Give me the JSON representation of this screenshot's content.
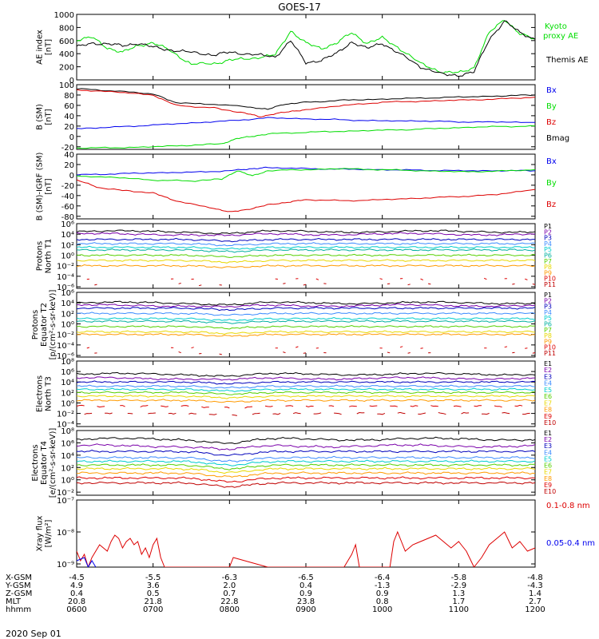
{
  "title": "GOES-17",
  "colors": {
    "black": "#000000",
    "green": "#00dd00",
    "blue": "#0000ee",
    "red": "#dd0000",
    "purple": "#7a00aa",
    "darkblue": "#0000bb",
    "lightblue": "#3c8cff",
    "cyan": "#00cccc",
    "teal": "#00b0a0",
    "lime": "#55d000",
    "yellow": "#e8d800",
    "orange": "#ff9a00",
    "darkred": "#c00000"
  },
  "chart_data": [
    {
      "type": "line",
      "panel": "ae",
      "ylabel": [
        "AE index",
        "[nT]"
      ],
      "ylim": [
        0,
        1000
      ],
      "yticks": [
        "1000",
        "800",
        "600",
        "400",
        "200",
        "0"
      ],
      "legend": [
        {
          "name": "Kyoto",
          "color": "green"
        },
        {
          "name": "proxy AE",
          "color": "green"
        },
        {
          "name": "Themis AE",
          "color": "black"
        }
      ],
      "series": [
        {
          "name": "Kyoto proxy AE",
          "color": "green",
          "x": [
            6.0,
            6.2,
            6.4,
            6.6,
            6.8,
            7.0,
            7.2,
            7.5,
            7.8,
            8.0,
            8.3,
            8.6,
            8.8,
            9.0,
            9.2,
            9.4,
            9.6,
            9.8,
            10.0,
            10.2,
            10.5,
            10.8,
            11.0,
            11.2,
            11.4,
            11.6,
            11.8,
            12.0
          ],
          "y": [
            610,
            650,
            490,
            420,
            520,
            570,
            460,
            240,
            250,
            300,
            330,
            380,
            750,
            560,
            480,
            560,
            720,
            560,
            640,
            500,
            250,
            110,
            110,
            190,
            720,
            930,
            700,
            620
          ]
        },
        {
          "name": "Themis AE",
          "color": "black",
          "x": [
            6.0,
            6.2,
            6.4,
            6.6,
            6.8,
            7.0,
            7.2,
            7.5,
            7.8,
            8.0,
            8.3,
            8.6,
            8.8,
            9.0,
            9.2,
            9.4,
            9.6,
            9.8,
            10.0,
            10.2,
            10.5,
            10.8,
            11.0,
            11.2,
            11.4,
            11.6,
            11.8,
            12.0
          ],
          "y": [
            500,
            560,
            550,
            520,
            560,
            500,
            460,
            420,
            380,
            420,
            390,
            350,
            600,
            260,
            300,
            400,
            580,
            480,
            560,
            420,
            200,
            80,
            70,
            120,
            620,
            900,
            720,
            620
          ]
        }
      ]
    },
    {
      "type": "line",
      "panel": "bsm",
      "ylabel": [
        "B (SM)",
        "[nT]"
      ],
      "ylim": [
        -25,
        100
      ],
      "yticks": [
        "100",
        "80",
        "60",
        "40",
        "20",
        "0",
        "-20"
      ],
      "legend": [
        {
          "name": "Bx",
          "color": "blue"
        },
        {
          "name": "By",
          "color": "green"
        },
        {
          "name": "Bz",
          "color": "red"
        },
        {
          "name": "Bmag",
          "color": "black"
        }
      ],
      "series": [
        {
          "name": "Bmag",
          "color": "black",
          "x": [
            6.0,
            6.5,
            7.0,
            7.3,
            7.8,
            8.2,
            8.5,
            8.7,
            9.0,
            9.5,
            10.0,
            10.5,
            11.0,
            11.5,
            12.0
          ],
          "y": [
            92,
            88,
            82,
            65,
            62,
            58,
            52,
            62,
            66,
            70,
            72,
            74,
            76,
            78,
            80
          ]
        },
        {
          "name": "Bz",
          "color": "red",
          "x": [
            6.0,
            6.5,
            7.0,
            7.3,
            7.8,
            8.2,
            8.4,
            8.6,
            8.8,
            9.0,
            9.5,
            10.0,
            10.5,
            11.0,
            11.5,
            12.0
          ],
          "y": [
            90,
            86,
            80,
            60,
            55,
            45,
            38,
            44,
            48,
            52,
            60,
            66,
            68,
            70,
            72,
            76
          ]
        },
        {
          "name": "Bx",
          "color": "blue",
          "x": [
            6.0,
            6.5,
            7.0,
            7.5,
            8.0,
            8.5,
            9.0,
            9.5,
            10.0,
            10.5,
            11.0,
            11.5,
            12.0
          ],
          "y": [
            15,
            18,
            22,
            26,
            30,
            36,
            34,
            32,
            30,
            30,
            28,
            28,
            27
          ]
        },
        {
          "name": "By",
          "color": "green",
          "x": [
            6.0,
            6.5,
            7.0,
            7.5,
            7.9,
            8.1,
            8.3,
            8.5,
            9.0,
            9.5,
            10.0,
            10.5,
            11.0,
            11.5,
            12.0
          ],
          "y": [
            -22,
            -22,
            -20,
            -17,
            -14,
            -4,
            0,
            5,
            8,
            10,
            12,
            14,
            17,
            19,
            20
          ]
        }
      ]
    },
    {
      "type": "line",
      "panel": "bigrf",
      "ylabel": [
        "B (SM)-IGRF (SM)",
        "[nT]"
      ],
      "ylim": [
        -85,
        40
      ],
      "yticks": [
        "40",
        "20",
        "0",
        "-20",
        "-40",
        "-60",
        "-80"
      ],
      "legend": [
        {
          "name": "Bx",
          "color": "blue"
        },
        {
          "name": "By",
          "color": "green"
        },
        {
          "name": "Bz",
          "color": "red"
        }
      ],
      "series": [
        {
          "name": "Bx",
          "color": "blue",
          "x": [
            6.0,
            6.5,
            7.0,
            7.5,
            8.0,
            8.3,
            8.5,
            9.0,
            9.5,
            10.0,
            10.5,
            11.0,
            11.5,
            12.0
          ],
          "y": [
            0,
            2,
            4,
            5,
            8,
            12,
            14,
            12,
            11,
            10,
            9,
            8,
            8,
            8
          ]
        },
        {
          "name": "By",
          "color": "green",
          "x": [
            6.0,
            6.5,
            7.0,
            7.5,
            7.9,
            8.1,
            8.3,
            8.5,
            9.0,
            9.5,
            10.0,
            10.5,
            11.0,
            11.5,
            12.0
          ],
          "y": [
            -2,
            -5,
            -10,
            -12,
            -8,
            8,
            -2,
            8,
            10,
            12,
            10,
            8,
            6,
            7,
            10
          ]
        },
        {
          "name": "Bz",
          "color": "red",
          "x": [
            6.0,
            6.3,
            6.6,
            7.0,
            7.3,
            7.8,
            8.0,
            8.3,
            8.5,
            8.8,
            9.0,
            9.5,
            10.0,
            10.5,
            11.0,
            11.5,
            12.0
          ],
          "y": [
            -10,
            -25,
            -30,
            -35,
            -50,
            -65,
            -72,
            -65,
            -58,
            -52,
            -48,
            -50,
            -48,
            -45,
            -42,
            -38,
            -28
          ]
        }
      ]
    },
    {
      "type": "line",
      "panel": "pn",
      "log": true,
      "ylabel": [
        "Protons",
        "North T1"
      ],
      "ylim": [
        -6.3,
        6
      ],
      "yticks": [
        "10⁶",
        "10⁴",
        "10²",
        "10⁰",
        "10⁻²",
        "10⁻⁴",
        "10⁻⁶"
      ],
      "legend": [
        "P1",
        "P2",
        "P3",
        "P4",
        "P5",
        "P6",
        "P7",
        "P8",
        "P9",
        "P10",
        "P11"
      ],
      "levels": [
        4.5,
        4.0,
        3.0,
        2.2,
        1.5,
        1.0,
        0,
        -1.0,
        -2.0,
        -4.5,
        -5.5
      ],
      "seriesColors": [
        "black",
        "purple",
        "darkblue",
        "lightblue",
        "cyan",
        "teal",
        "lime",
        "yellow",
        "orange",
        "red",
        "darkred"
      ]
    },
    {
      "type": "line",
      "panel": "pe",
      "log": true,
      "ylabel": [
        "Protons",
        "Equator T2",
        "[p/(cm²-s-sr-keV)]"
      ],
      "ylim": [
        -6.3,
        6
      ],
      "yticks": [
        "10⁶",
        "10⁴",
        "10²",
        "10⁰",
        "10⁻²",
        "10⁻⁴",
        "10⁻⁶"
      ],
      "legend": [
        "P1",
        "P2",
        "P3",
        "P4",
        "P5",
        "P6",
        "P7",
        "P8",
        "P9",
        "P10",
        "P11"
      ],
      "levels": [
        4.0,
        3.5,
        3.0,
        2.0,
        1.0,
        0.5,
        -0.5,
        -1.5,
        -2.0,
        -4.5,
        -5.5
      ],
      "seriesColors": [
        "black",
        "purple",
        "darkblue",
        "lightblue",
        "cyan",
        "teal",
        "lime",
        "yellow",
        "orange",
        "red",
        "darkred"
      ]
    },
    {
      "type": "line",
      "panel": "en",
      "log": true,
      "ylabel": [
        "Electrons",
        "North T3"
      ],
      "ylim": [
        -4.5,
        8
      ],
      "yticks": [
        "10⁸",
        "10⁶",
        "10⁴",
        "10²",
        "10⁰",
        "10⁻²",
        "10⁻⁴"
      ],
      "legend": [
        "E1",
        "E2",
        "E3",
        "E4",
        "E5",
        "E6",
        "E7",
        "E8",
        "E9",
        "E10"
      ],
      "levels": [
        5.5,
        4.7,
        4.0,
        3.2,
        2.6,
        2.0,
        1.3,
        0.5,
        -0.6,
        -2.0
      ],
      "seriesColors": [
        "black",
        "purple",
        "darkblue",
        "lightblue",
        "cyan",
        "lime",
        "yellow",
        "orange",
        "red",
        "darkred"
      ]
    },
    {
      "type": "line",
      "panel": "ee",
      "log": true,
      "ylabel": [
        "Electrons",
        "Equator T4",
        "[e/(cm²-s-sr-keV)]"
      ],
      "ylim": [
        -2.5,
        8
      ],
      "yticks": [
        "10⁸",
        "10⁶",
        "10⁴",
        "10²",
        "10⁰",
        "10⁻²"
      ],
      "legend": [
        "E1",
        "E2",
        "E3",
        "E4",
        "E5",
        "E6",
        "E7",
        "E8",
        "E9",
        "E10"
      ],
      "levels": [
        6.6,
        5.5,
        4.6,
        3.6,
        3.0,
        2.4,
        1.8,
        1.1,
        0.3,
        -0.5
      ],
      "seriesColors": [
        "black",
        "purple",
        "darkblue",
        "lightblue",
        "cyan",
        "lime",
        "yellow",
        "orange",
        "red",
        "darkred"
      ]
    },
    {
      "type": "line",
      "panel": "xray",
      "log": true,
      "ylabel": [
        "Xray flux",
        "[W/m²]"
      ],
      "ylim": [
        -9.1,
        -7
      ],
      "yticks": [
        "10⁻⁷",
        "10⁻⁸",
        "10⁻⁹"
      ],
      "legend": [
        {
          "name": "0.1-0.8 nm",
          "color": "red"
        },
        {
          "name": "0.05-0.4 nm",
          "color": "blue"
        }
      ],
      "series": [
        {
          "name": "0.1-0.8 nm",
          "color": "red",
          "x": [
            6.0,
            6.05,
            6.1,
            6.15,
            6.2,
            6.25,
            6.3,
            6.35,
            6.4,
            6.45,
            6.5,
            6.55,
            6.6,
            6.65,
            6.7,
            6.75,
            6.8,
            6.85,
            6.9,
            6.95,
            7.0,
            7.05,
            7.1,
            7.15,
            7.5,
            8.0,
            8.05,
            8.5,
            9.5,
            9.6,
            9.65,
            9.7,
            10.1,
            10.15,
            10.2,
            10.3,
            10.4,
            10.5,
            10.6,
            10.7,
            10.8,
            10.9,
            11.0,
            11.1,
            11.2,
            11.3,
            11.4,
            11.5,
            11.6,
            11.7,
            11.8,
            11.9,
            12.0
          ],
          "y": [
            -8.6,
            -8.9,
            -8.7,
            -9.1,
            -8.8,
            -8.6,
            -8.4,
            -8.5,
            -8.6,
            -8.3,
            -8.1,
            -8.2,
            -8.5,
            -8.3,
            -8.2,
            -8.4,
            -8.3,
            -8.7,
            -8.5,
            -8.8,
            -8.4,
            -8.2,
            -8.8,
            -9.1,
            -9.1,
            -9.1,
            -8.8,
            -9.1,
            -9.1,
            -8.7,
            -8.4,
            -9.1,
            -9.1,
            -8.3,
            -8.0,
            -8.6,
            -8.4,
            -8.3,
            -8.2,
            -8.1,
            -8.3,
            -8.5,
            -8.3,
            -8.6,
            -9.1,
            -8.8,
            -8.4,
            -8.2,
            -8.0,
            -8.5,
            -8.3,
            -8.6,
            -8.5
          ]
        },
        {
          "name": "0.05-0.4 nm",
          "color": "blue",
          "x": [
            6.0,
            6.1,
            6.15,
            6.2,
            6.25
          ],
          "y": [
            -8.9,
            -8.8,
            -9.1,
            -8.9,
            -9.1
          ]
        }
      ]
    }
  ],
  "xaxis": {
    "ticks": [
      6,
      7,
      8,
      9,
      10,
      11,
      12
    ],
    "rows": [
      {
        "label": "X-GSM",
        "values": [
          "-4.5",
          "-5.5",
          "-6.3",
          "-6.5",
          "-6.4",
          "-5.8",
          "-4.8"
        ]
      },
      {
        "label": "Y-GSM",
        "values": [
          "4.9",
          "3.6",
          "2.0",
          "0.4",
          "-1.3",
          "-2.9",
          "-4.3"
        ]
      },
      {
        "label": "Z-GSM",
        "values": [
          "0.4",
          "0.5",
          "0.7",
          "0.9",
          "0.9",
          "1.3",
          "1.4"
        ]
      },
      {
        "label": "MLT",
        "values": [
          "20.8",
          "21.8",
          "22.8",
          "23.8",
          "0.8",
          "1.7",
          "2.7"
        ]
      },
      {
        "label": "hhmm",
        "values": [
          "0600",
          "0700",
          "0800",
          "0900",
          "1000",
          "1100",
          "1200"
        ]
      }
    ],
    "date": "2020 Sep 01"
  }
}
